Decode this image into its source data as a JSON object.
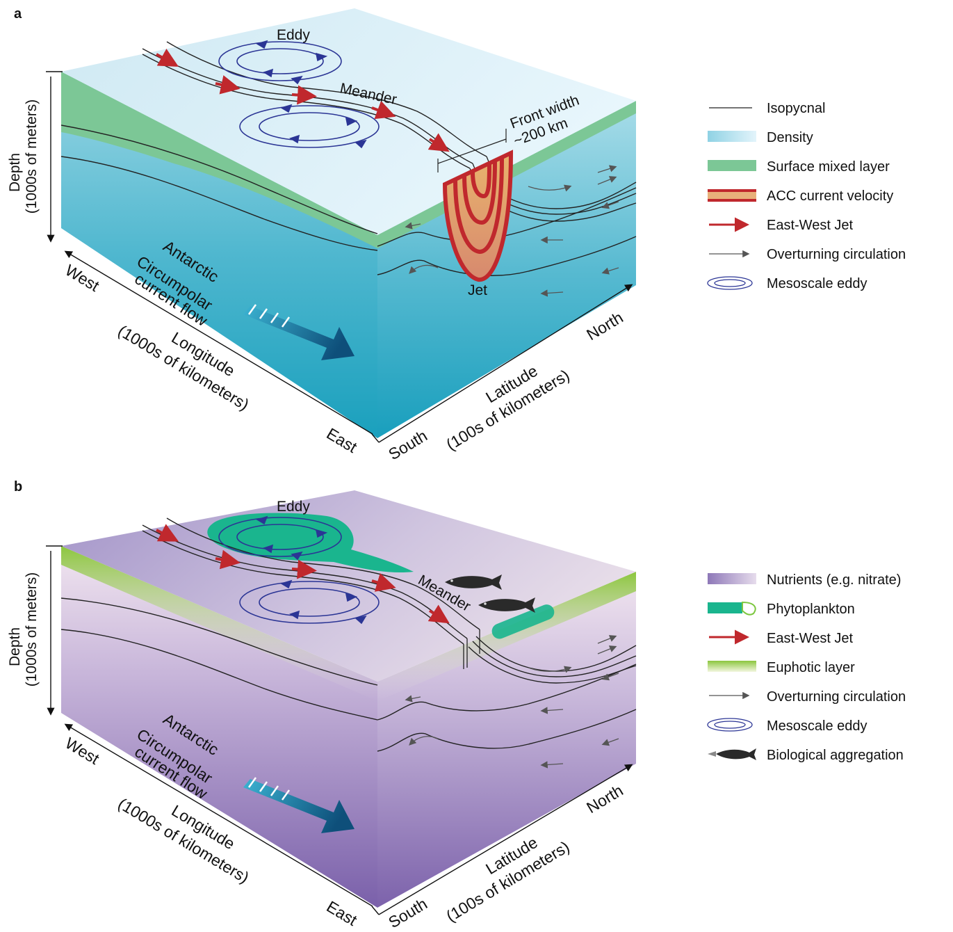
{
  "panel_a": {
    "letter": "a",
    "depth_label_1": "Depth",
    "depth_label_2": "(1000s of meters)",
    "eddy_label": "Eddy",
    "meander_label": "Meander",
    "front_width_1": "Front width",
    "front_width_2": "~200 km",
    "jet_label": "Jet",
    "acc_1": "Antarctic",
    "acc_2": "Circumpolar",
    "acc_3": "current flow",
    "west": "West",
    "east": "East",
    "longitude_1": "Longitude",
    "longitude_2": "(1000s of kilometers)",
    "south": "South",
    "north": "North",
    "latitude_1": "Latitude",
    "latitude_2": "(100s of kilometers)",
    "legend": [
      {
        "icon": "isopycnal-line-icon",
        "label": "Isopycnal"
      },
      {
        "icon": "density-gradient-icon",
        "label": "Density"
      },
      {
        "icon": "mixed-layer-swatch-icon",
        "label": "Surface mixed layer"
      },
      {
        "icon": "current-velocity-icon",
        "label": "ACC current velocity"
      },
      {
        "icon": "red-arrow-icon",
        "label": "East-West Jet"
      },
      {
        "icon": "gray-arrow-icon",
        "label": "Overturning circulation"
      },
      {
        "icon": "eddy-icon",
        "label": "Mesoscale eddy"
      }
    ]
  },
  "panel_b": {
    "letter": "b",
    "depth_label_1": "Depth",
    "depth_label_2": "(1000s of meters)",
    "eddy_label": "Eddy",
    "meander_label": "Meander",
    "acc_1": "Antarctic",
    "acc_2": "Circumpolar",
    "acc_3": "current flow",
    "west": "West",
    "east": "East",
    "longitude_1": "Longitude",
    "longitude_2": "(1000s of kilometers)",
    "south": "South",
    "north": "North",
    "latitude_1": "Latitude",
    "latitude_2": "(100s of kilometers)",
    "legend": [
      {
        "icon": "nutrients-gradient-icon",
        "label": "Nutrients (e.g. nitrate)"
      },
      {
        "icon": "phytoplankton-icon",
        "label": "Phytoplankton"
      },
      {
        "icon": "red-arrow-icon",
        "label": "East-West Jet"
      },
      {
        "icon": "euphotic-layer-icon",
        "label": "Euphotic layer"
      },
      {
        "icon": "gray-arrow-icon",
        "label": "Overturning circulation"
      },
      {
        "icon": "eddy-icon",
        "label": "Mesoscale eddy"
      },
      {
        "icon": "fish-icon",
        "label": "Biological aggregation"
      }
    ]
  },
  "colors": {
    "density_top": "#e3f4fb",
    "density_deep": "#1aa0bd",
    "mixed_layer": "#7cc796",
    "jet_red": "#c0282d",
    "jet_fill": "#e8b07a",
    "eddy_blue": "#2b3595",
    "overturning_gray": "#555555",
    "nutrients_light": "#e6dcec",
    "nutrients_deep": "#7b62aa",
    "phytoplankton": "#1ab58e",
    "euphotic_green": "#9ccc3c",
    "flow_arrow": "#1a6f96"
  }
}
